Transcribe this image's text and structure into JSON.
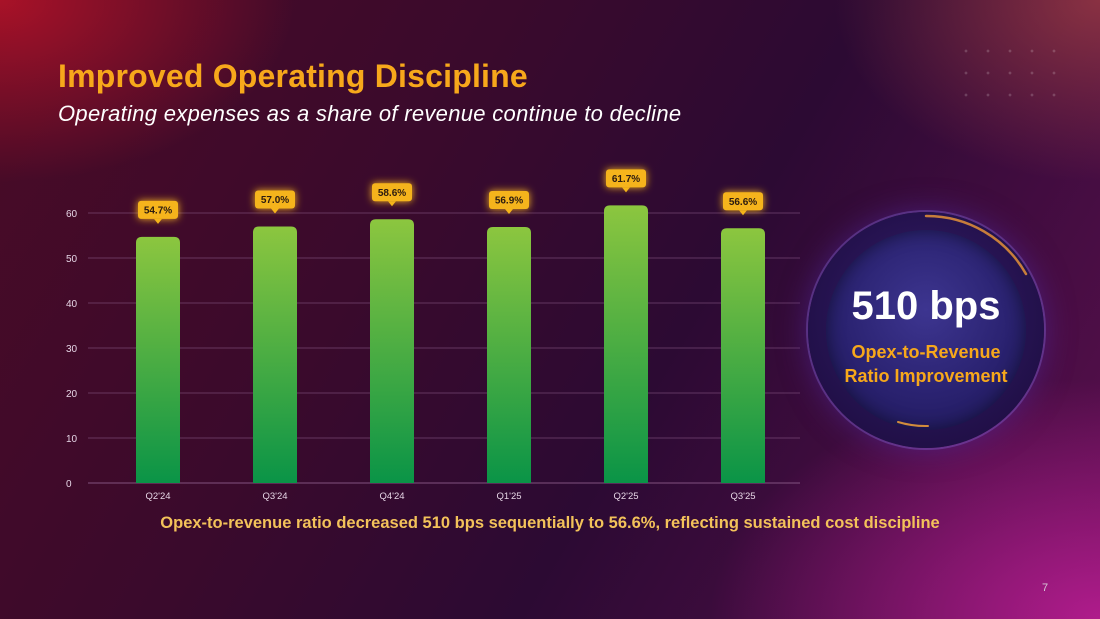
{
  "slide": {
    "title": "Improved Operating Discipline",
    "subtitle": "Operating expenses as a share of revenue continue to decline",
    "footnote": "Opex-to-revenue ratio decreased 510 bps sequentially to 56.6%, reflecting sustained cost discipline",
    "page_number": "7"
  },
  "callout": {
    "value": "510 bps",
    "label_line1": "Opex-to-Revenue",
    "label_line2": "Ratio Improvement"
  },
  "colors": {
    "title": "#f7a81b",
    "bar_top": "#8cc63f",
    "bar_bottom": "#0a9447",
    "label_bg": "#f5b41a",
    "label_text": "#2a1a10",
    "grid": "#8a5a88",
    "axis_text": "#e6d6e6"
  },
  "chart_data": {
    "type": "bar",
    "title": "",
    "xlabel": "",
    "ylabel": "",
    "categories": [
      "Q2'24",
      "Q3'24",
      "Q4'24",
      "Q1'25",
      "Q2'25",
      "Q3'25"
    ],
    "values": [
      54.7,
      57.0,
      58.6,
      56.9,
      61.7,
      56.6
    ],
    "data_labels": [
      "54.7%",
      "57.0%",
      "58.6%",
      "56.9%",
      "61.7%",
      "56.6%"
    ],
    "ylim": [
      0,
      60
    ],
    "yticks": [
      0,
      10,
      20,
      30,
      40,
      50,
      60
    ],
    "grid": true,
    "legend": "none"
  }
}
